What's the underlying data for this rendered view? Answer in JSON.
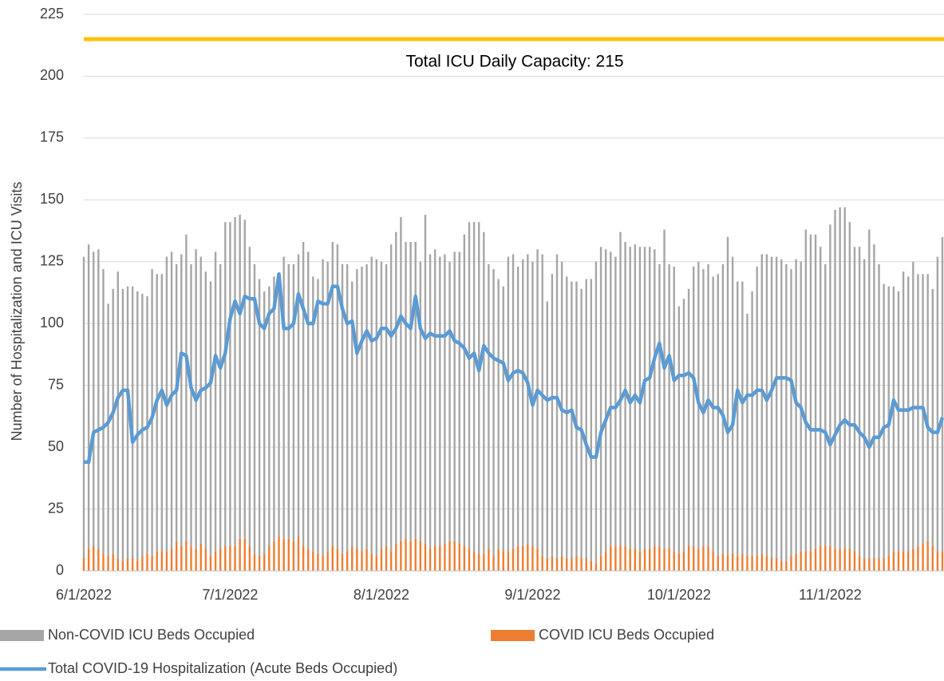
{
  "chart_data": {
    "type": "combo",
    "y_label": "Number of Hospitalization and ICU Visits",
    "x": [
      "6/1/2022",
      "6/2/2022",
      "6/3/2022",
      "6/4/2022",
      "6/5/2022",
      "6/6/2022",
      "6/7/2022",
      "6/8/2022",
      "6/9/2022",
      "6/10/2022",
      "6/11/2022",
      "6/12/2022",
      "6/13/2022",
      "6/14/2022",
      "6/15/2022",
      "6/16/2022",
      "6/17/2022",
      "6/18/2022",
      "6/19/2022",
      "6/20/2022",
      "6/21/2022",
      "6/22/2022",
      "6/23/2022",
      "6/24/2022",
      "6/25/2022",
      "6/26/2022",
      "6/27/2022",
      "6/28/2022",
      "6/29/2022",
      "6/30/2022",
      "7/1/2022",
      "7/2/2022",
      "7/3/2022",
      "7/4/2022",
      "7/5/2022",
      "7/6/2022",
      "7/7/2022",
      "7/8/2022",
      "7/9/2022",
      "7/10/2022",
      "7/11/2022",
      "7/12/2022",
      "7/13/2022",
      "7/14/2022",
      "7/15/2022",
      "7/16/2022",
      "7/17/2022",
      "7/18/2022",
      "7/19/2022",
      "7/20/2022",
      "7/21/2022",
      "7/22/2022",
      "7/23/2022",
      "7/24/2022",
      "7/25/2022",
      "7/26/2022",
      "7/27/2022",
      "7/28/2022",
      "7/29/2022",
      "7/30/2022",
      "7/31/2022",
      "8/1/2022",
      "8/2/2022",
      "8/3/2022",
      "8/4/2022",
      "8/5/2022",
      "8/6/2022",
      "8/7/2022",
      "8/8/2022",
      "8/9/2022",
      "8/10/2022",
      "8/11/2022",
      "8/12/2022",
      "8/13/2022",
      "8/14/2022",
      "8/15/2022",
      "8/16/2022",
      "8/17/2022",
      "8/18/2022",
      "8/19/2022",
      "8/20/2022",
      "8/21/2022",
      "8/22/2022",
      "8/23/2022",
      "8/24/2022",
      "8/25/2022",
      "8/26/2022",
      "8/27/2022",
      "8/28/2022",
      "8/29/2022",
      "8/30/2022",
      "8/31/2022",
      "9/1/2022",
      "9/2/2022",
      "9/3/2022",
      "9/4/2022",
      "9/5/2022",
      "9/6/2022",
      "9/7/2022",
      "9/8/2022",
      "9/9/2022",
      "9/10/2022",
      "9/11/2022",
      "9/12/2022",
      "9/13/2022",
      "9/14/2022",
      "9/15/2022",
      "9/16/2022",
      "9/17/2022",
      "9/18/2022",
      "9/19/2022",
      "9/20/2022",
      "9/21/2022",
      "9/22/2022",
      "9/23/2022",
      "9/24/2022",
      "9/25/2022",
      "9/26/2022",
      "9/27/2022",
      "9/28/2022",
      "9/29/2022",
      "9/30/2022",
      "10/1/2022",
      "10/2/2022",
      "10/3/2022",
      "10/4/2022",
      "10/5/2022",
      "10/6/2022",
      "10/7/2022",
      "10/8/2022",
      "10/9/2022",
      "10/10/2022",
      "10/11/2022",
      "10/12/2022",
      "10/13/2022",
      "10/14/2022",
      "10/15/2022",
      "10/16/2022",
      "10/17/2022",
      "10/18/2022",
      "10/19/2022",
      "10/20/2022",
      "10/21/2022",
      "10/22/2022",
      "10/23/2022",
      "10/24/2022",
      "10/25/2022",
      "10/26/2022",
      "10/27/2022",
      "10/28/2022",
      "10/29/2022",
      "10/30/2022",
      "10/31/2022",
      "11/1/2022",
      "11/2/2022",
      "11/3/2022",
      "11/4/2022",
      "11/5/2022",
      "11/6/2022",
      "11/7/2022",
      "11/8/2022",
      "11/9/2022",
      "11/10/2022",
      "11/11/2022",
      "11/12/2022",
      "11/13/2022",
      "11/14/2022",
      "11/15/2022",
      "11/16/2022",
      "11/17/2022",
      "11/18/2022",
      "11/19/2022",
      "11/20/2022",
      "11/21/2022",
      "11/22/2022",
      "11/23/2022",
      "11/24/2022"
    ],
    "series": [
      {
        "name": "Non-COVID ICU Beds Occupied",
        "kind": "bar",
        "color": "#a6a6a6",
        "values": [
          122,
          123,
          119,
          121,
          115,
          102,
          107,
          116,
          110,
          110,
          110,
          109,
          106,
          104,
          116,
          112,
          112,
          119,
          120,
          112,
          118,
          124,
          114,
          121,
          116,
          112,
          111,
          121,
          115,
          131,
          131,
          133,
          131,
          129,
          121,
          117,
          112,
          106,
          105,
          107,
          106,
          114,
          111,
          112,
          114,
          123,
          120,
          111,
          111,
          120,
          117,
          123,
          123,
          117,
          116,
          107,
          113,
          115,
          115,
          120,
          120,
          116,
          114,
          124,
          126,
          131,
          120,
          121,
          120,
          113,
          133,
          119,
          120,
          117,
          117,
          113,
          117,
          118,
          126,
          132,
          133,
          134,
          130,
          115,
          116,
          109,
          107,
          119,
          119,
          113,
          116,
          117,
          115,
          121,
          122,
          104,
          114,
          123,
          119,
          114,
          112,
          111,
          109,
          113,
          114,
          122,
          125,
          122,
          119,
          117,
          127,
          123,
          122,
          123,
          123,
          122,
          122,
          120,
          114,
          129,
          115,
          115,
          100,
          102,
          104,
          113,
          116,
          112,
          114,
          111,
          114,
          117,
          129,
          120,
          111,
          110,
          98,
          107,
          117,
          121,
          122,
          122,
          122,
          122,
          120,
          116,
          119,
          117,
          130,
          128,
          127,
          121,
          114,
          130,
          137,
          138,
          138,
          132,
          123,
          125,
          121,
          133,
          127,
          119,
          111,
          109,
          107,
          105,
          113,
          111,
          116,
          110,
          109,
          108,
          104,
          119,
          127
        ]
      },
      {
        "name": "COVID ICU Beds Occupied",
        "kind": "bar",
        "color": "#ed7d31",
        "values": [
          5,
          9,
          10,
          9,
          7,
          6,
          7,
          5,
          4,
          5,
          5,
          4,
          6,
          7,
          6,
          8,
          8,
          8,
          9,
          12,
          10,
          12,
          10,
          9,
          11,
          9,
          6,
          8,
          9,
          10,
          10,
          10,
          13,
          13,
          10,
          7,
          6,
          7,
          10,
          12,
          14,
          13,
          13,
          12,
          14,
          10,
          9,
          8,
          7,
          6,
          8,
          10,
          9,
          7,
          8,
          10,
          9,
          8,
          9,
          7,
          6,
          9,
          10,
          8,
          11,
          12,
          13,
          12,
          13,
          12,
          11,
          9,
          10,
          10,
          11,
          12,
          12,
          11,
          10,
          9,
          8,
          7,
          7,
          9,
          6,
          9,
          8,
          8,
          9,
          10,
          10,
          11,
          10,
          9,
          6,
          5,
          6,
          5,
          6,
          5,
          5,
          6,
          5,
          5,
          4,
          3,
          6,
          8,
          10,
          10,
          10,
          10,
          9,
          9,
          8,
          9,
          9,
          10,
          10,
          9,
          9,
          8,
          7,
          8,
          10,
          10,
          9,
          10,
          10,
          8,
          6,
          7,
          6,
          7,
          6,
          7,
          6,
          6,
          6,
          7,
          6,
          5,
          5,
          4,
          4,
          6,
          7,
          8,
          8,
          8,
          9,
          10,
          10,
          10,
          9,
          9,
          9,
          9,
          8,
          6,
          5,
          5,
          5,
          5,
          5,
          6,
          8,
          8,
          8,
          8,
          9,
          10,
          11,
          12,
          10,
          8,
          8
        ]
      },
      {
        "name": "Total COVID-19 Hospitalization (Acute Beds Occupied)",
        "kind": "line",
        "color": "#5b9bd5",
        "values": [
          44,
          44,
          56,
          57,
          58,
          60,
          64,
          70,
          73,
          73,
          52,
          55,
          57,
          58,
          62,
          69,
          73,
          67,
          71,
          73,
          88,
          87,
          74,
          69,
          73,
          74,
          76,
          87,
          82,
          88,
          102,
          109,
          104,
          111,
          110,
          110,
          100,
          98,
          104,
          106,
          120,
          98,
          98,
          100,
          112,
          106,
          100,
          100,
          109,
          108,
          108,
          115,
          115,
          106,
          100,
          101,
          88,
          93,
          97,
          93,
          94,
          98,
          98,
          95,
          98,
          103,
          100,
          98,
          111,
          98,
          94,
          96,
          95,
          95,
          95,
          97,
          93,
          92,
          90,
          86,
          88,
          81,
          91,
          88,
          86,
          85,
          84,
          77,
          80,
          81,
          80,
          76,
          67,
          73,
          71,
          69,
          70,
          70,
          65,
          64,
          65,
          58,
          57,
          51,
          46,
          46,
          56,
          61,
          66,
          66,
          69,
          73,
          68,
          71,
          68,
          77,
          78,
          86,
          92,
          82,
          87,
          77,
          79,
          79,
          80,
          78,
          68,
          64,
          69,
          66,
          66,
          63,
          56,
          59,
          73,
          68,
          71,
          71,
          73,
          73,
          69,
          73,
          78,
          78,
          78,
          77,
          68,
          66,
          60,
          57,
          57,
          57,
          56,
          51,
          55,
          59,
          61,
          59,
          59,
          56,
          54,
          50,
          54,
          54,
          58,
          59,
          69,
          65,
          65,
          65,
          66,
          66,
          66,
          58,
          56,
          56,
          62
        ]
      }
    ],
    "stacked": true,
    "capacity": {
      "value": 215,
      "label": "Total ICU Daily Capacity: 215",
      "color": "#ffc000"
    },
    "ylim": [
      0,
      225
    ],
    "yticks": [
      0,
      25,
      50,
      75,
      100,
      125,
      150,
      175,
      200,
      225
    ],
    "xticks": [
      "6/1/2022",
      "7/1/2022",
      "8/1/2022",
      "9/1/2022",
      "10/1/2022",
      "11/1/2022"
    ],
    "grid": true
  }
}
